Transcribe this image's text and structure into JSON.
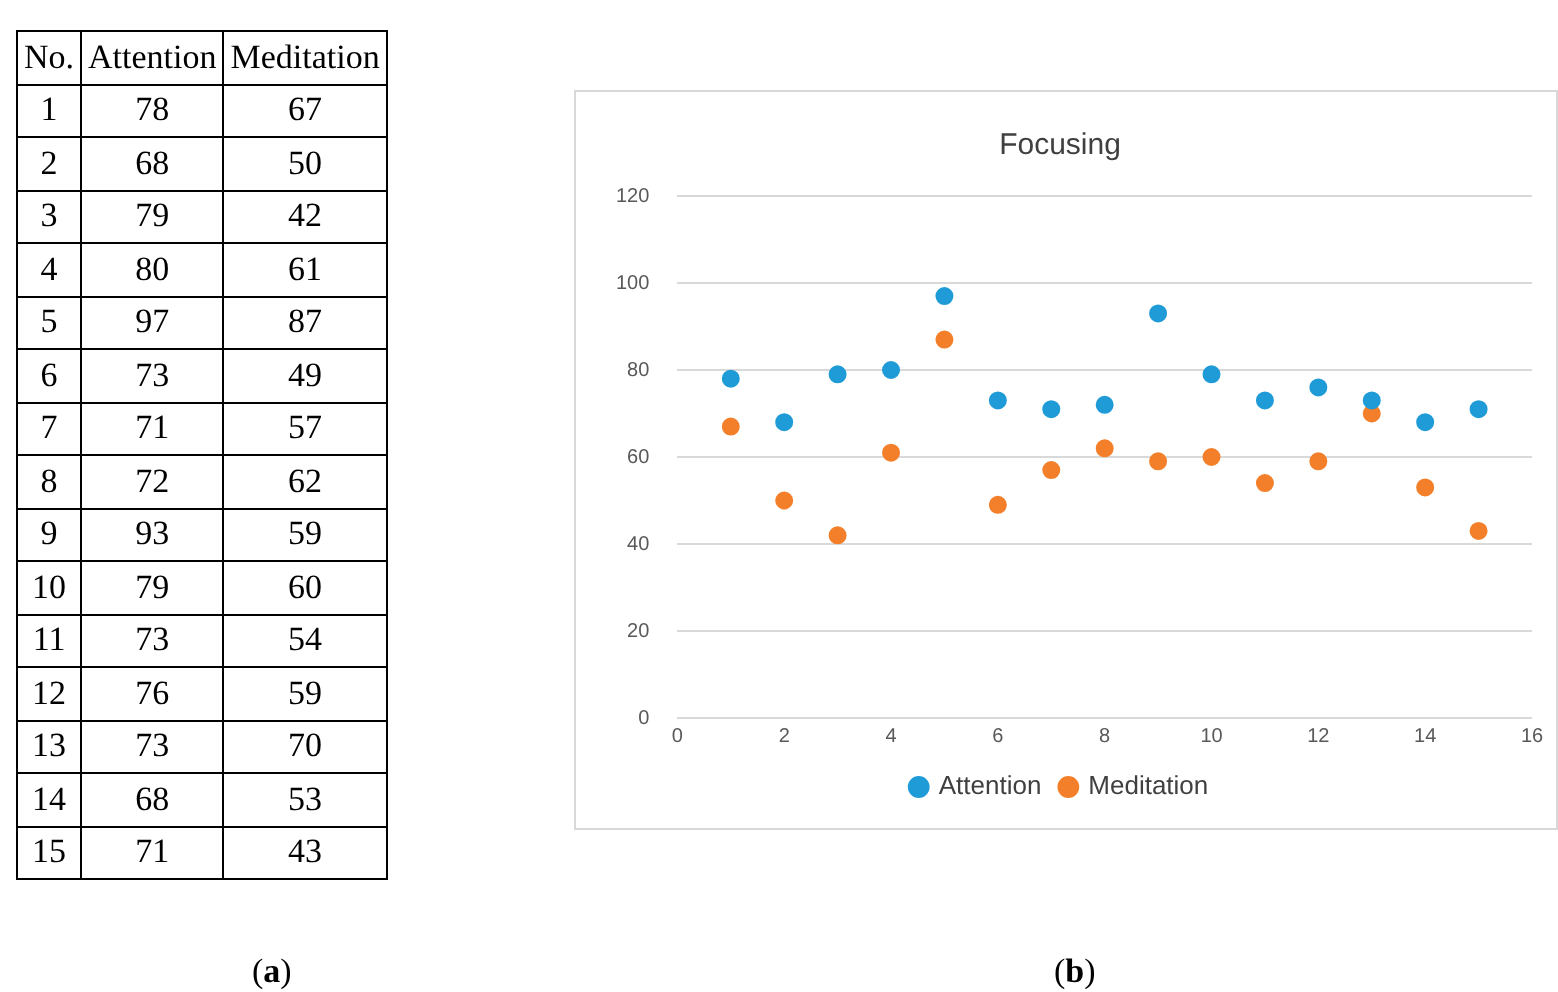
{
  "chart_data": [
    {
      "type": "heatmap",
      "ylabel": "No.",
      "categories": [
        "Attention",
        "Meditation"
      ],
      "y_categories": [
        "1",
        "2",
        "3",
        "4",
        "5",
        "6",
        "7",
        "8",
        "9",
        "10",
        "11",
        "12",
        "13",
        "14",
        "15"
      ],
      "cells": [
        [
          78,
          67
        ],
        [
          68,
          50
        ],
        [
          79,
          42
        ],
        [
          80,
          61
        ],
        [
          97,
          87
        ],
        [
          73,
          49
        ],
        [
          71,
          57
        ],
        [
          72,
          62
        ],
        [
          93,
          59
        ],
        [
          79,
          60
        ],
        [
          73,
          54
        ],
        [
          76,
          59
        ],
        [
          73,
          70
        ],
        [
          68,
          53
        ],
        [
          71,
          43
        ]
      ],
      "data_labels": true,
      "annotations": [
        "(a)"
      ]
    },
    {
      "type": "scatter",
      "title": "Focusing",
      "x": [
        1,
        2,
        3,
        4,
        5,
        6,
        7,
        8,
        9,
        10,
        11,
        12,
        13,
        14,
        15
      ],
      "series": [
        {
          "name": "Attention",
          "color": "#1f9bd7",
          "values": [
            78,
            68,
            79,
            80,
            97,
            73,
            71,
            72,
            93,
            79,
            73,
            76,
            73,
            68,
            71
          ]
        },
        {
          "name": "Meditation",
          "color": "#f47f2a",
          "values": [
            67,
            50,
            42,
            61,
            87,
            49,
            57,
            62,
            59,
            60,
            54,
            59,
            70,
            53,
            43
          ]
        }
      ],
      "xlim": [
        0,
        16
      ],
      "xticks": [
        0,
        2,
        4,
        6,
        8,
        10,
        12,
        14,
        16
      ],
      "ylim": [
        0,
        120
      ],
      "yticks": [
        0,
        20,
        40,
        60,
        80,
        100,
        120
      ],
      "grid": "y",
      "legend": "bottom",
      "marker": "circle",
      "annotations": [
        "(b)"
      ]
    }
  ]
}
